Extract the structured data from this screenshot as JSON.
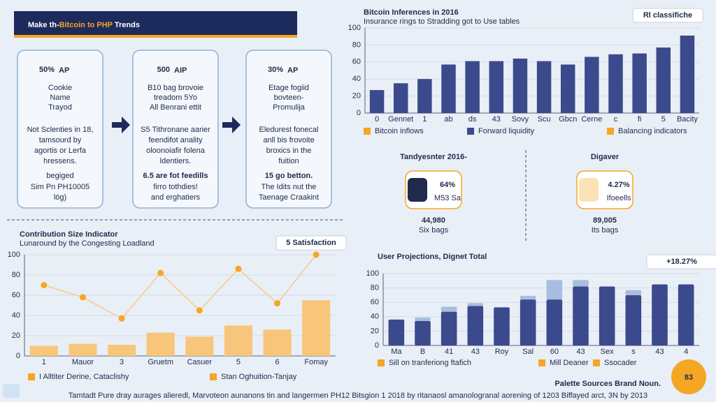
{
  "header": {
    "title_pre": "Make th-",
    "title_highlight": "Bitcoin to PHP",
    "title_post": " Trends"
  },
  "cards": [
    {
      "headline": "50%",
      "unit": "AP",
      "intro": [
        "Cookie",
        "Name",
        "Trayod"
      ],
      "body": [
        "Not Sclenties in 18,",
        "tamsourd by",
        "agortis or Lerfa",
        "hressens."
      ],
      "note": "begiged",
      "outro": [
        "Sim Pn PH10005",
        "lög)"
      ]
    },
    {
      "headline": "500",
      "unit": "AIP",
      "intro": [
        "B10 bag brovoie",
        "treadom 5Yo",
        "All Benrani ettit"
      ],
      "body": [
        "S5 Tithronane aarier",
        "feendifot anality",
        "oloonoiafir folena",
        "ldentiers."
      ],
      "note": "6.5 are fot feedills",
      "outro": [
        "firro tothdies!",
        "and erghatiers"
      ]
    },
    {
      "headline": "30%",
      "unit": "AP",
      "intro": [
        "Etage fogiid",
        "bovteen-",
        "Promulija"
      ],
      "body": [
        "Eledurest fonecal",
        "anll bis frovoite",
        "broxics in the",
        "fuition"
      ],
      "note": "15 go betton.",
      "outro": [
        "The Idits nut the",
        "Taenage Craakint"
      ]
    }
  ],
  "stats": [
    {
      "title": "Tandyesnter 2016-",
      "badge": "64%",
      "badge_sub": "M53 Sa",
      "value": "44,980",
      "label": "Six bags"
    },
    {
      "title": "Digaver",
      "badge": "4.27%",
      "badge_sub": "Ifoeells",
      "value": "89,005",
      "label": "Its bags"
    }
  ],
  "chart_data": [
    {
      "type": "bar",
      "title": "Bitcoin Inferences in 2016",
      "subtitle": "Insurance rings to Stradding got to Use tables",
      "badge": "Rl classifiche",
      "categories": [
        "0",
        "Gennet",
        "1",
        "ab",
        "ds",
        "43",
        "Sovy",
        "Scu",
        "Gbcn",
        "Cerne",
        "c",
        "fi",
        "5",
        "Bacity"
      ],
      "values": [
        27,
        35,
        40,
        57,
        61,
        61,
        64,
        61,
        57,
        66,
        69,
        70,
        77,
        91
      ],
      "color": "#3b4a8c",
      "ylim": [
        0,
        100
      ],
      "yticks": [
        0,
        20,
        40,
        60,
        80,
        100
      ],
      "grid": true,
      "legend": [
        {
          "label": "Bitcoin inflows",
          "color": "#f5a623"
        },
        {
          "label": "Forward liquidity",
          "color": "#3b4a8c"
        },
        {
          "label": "Balancing indicators",
          "color": "#f5a623"
        }
      ]
    },
    {
      "type": "line",
      "title": "Contribution Size Indicator",
      "subtitle": "Lunaround by the Congesting Loadland",
      "badge": "5 Satisfaction",
      "categories": [
        "1",
        "Mauor",
        "3",
        "Gruetm",
        "Casuer",
        "5",
        "6",
        "Fomay"
      ],
      "series": [
        {
          "kind": "bar",
          "color": "#f7c67a",
          "values": [
            10,
            12,
            11,
            23,
            19,
            30,
            26,
            55
          ]
        },
        {
          "kind": "line",
          "color": "#f5a623",
          "values": [
            70,
            58,
            37,
            82,
            45,
            86,
            52,
            100
          ]
        }
      ],
      "ylim": [
        0,
        100
      ],
      "yticks": [
        0,
        20,
        40,
        60,
        80,
        100
      ],
      "grid": true,
      "legend": [
        {
          "label": "I Alltiter Derine, Cataclishy",
          "color": "#f5a623"
        },
        {
          "label": "Stan Oghuition-Tanjay",
          "color": "#f5a623"
        }
      ]
    },
    {
      "type": "stacked",
      "title": "User Projections, Dignet Total",
      "badge": "+18.27%",
      "categories": [
        "Ma",
        "B",
        "41",
        "43",
        "Roy",
        "Sal",
        "60",
        "43",
        "Sex",
        "s",
        "43",
        "4"
      ],
      "series": [
        {
          "color": "#3b4a8c",
          "values": [
            36,
            34,
            47,
            55,
            53,
            64,
            64,
            82,
            82,
            70,
            85,
            85
          ]
        },
        {
          "color": "#a9bde0",
          "values": [
            0,
            5,
            7,
            4,
            0,
            5,
            27,
            9,
            0,
            7,
            0,
            0
          ]
        }
      ],
      "ylim": [
        0,
        100
      ],
      "yticks": [
        0,
        20,
        40,
        60,
        80,
        100
      ],
      "grid": true,
      "legend": [
        {
          "label": "Sill on tranferiong ftafich",
          "color": "#f5a623"
        },
        {
          "label": "Mill Deaner",
          "color": "#f5a623"
        },
        {
          "label": "Ssocader",
          "color": "#f5a623"
        }
      ]
    }
  ],
  "footer": {
    "source": "Palette Sources Brand Noun.",
    "score": "83",
    "caption": "Tamtadt Pure dray aurages alieredl, Marvoteon aunanons tin and langermen PH12 Bitsgion 1 2018 by ritanaosl amanologranal aorening of 1203 Biffayed arct, 3N by 2013"
  }
}
